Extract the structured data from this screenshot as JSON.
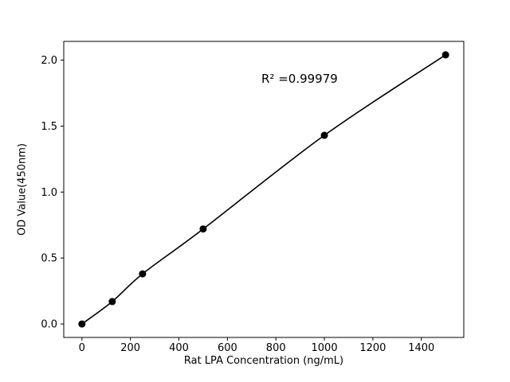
{
  "figure": {
    "background": "#ffffff",
    "line_color": "#000000",
    "marker_color": "#000000",
    "text_color": "#000000"
  },
  "chart_data": {
    "type": "line",
    "title": "",
    "xlabel": "Rat LPA Concentration (ng/mL)",
    "ylabel": "OD Value(450nm)",
    "annotation": "R² =0.99979",
    "x": [
      0,
      125,
      250,
      500,
      1000,
      1500
    ],
    "y": [
      0.0,
      0.17,
      0.38,
      0.72,
      1.43,
      2.04
    ],
    "xlim": [
      -75,
      1575
    ],
    "ylim": [
      -0.102,
      2.142
    ],
    "xticks": {
      "values": [
        0,
        200,
        400,
        600,
        800,
        1000,
        1200,
        1400
      ],
      "labels": [
        "0",
        "200",
        "400",
        "600",
        "800",
        "1000",
        "1200",
        "1400"
      ]
    },
    "yticks": {
      "values": [
        0,
        0.5,
        1.0,
        1.5,
        2.0
      ],
      "labels": [
        "0.0",
        "0.5",
        "1.0",
        "1.5",
        "2.0"
      ]
    },
    "grid": false,
    "legend": "none",
    "marker": "circle"
  }
}
